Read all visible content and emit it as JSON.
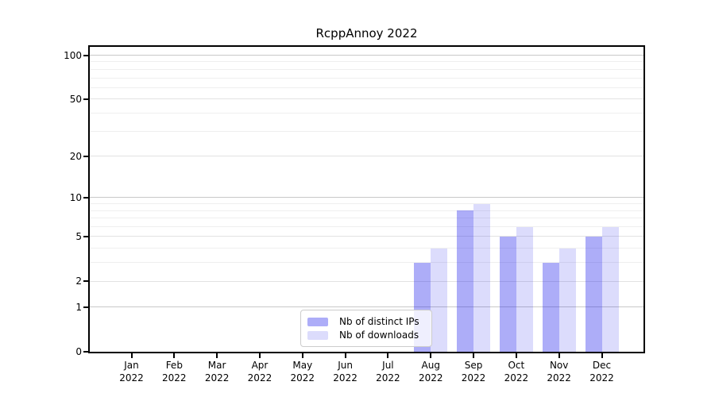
{
  "chart_data": {
    "type": "bar",
    "title": "RcppAnnoy 2022",
    "x_categories": [
      "Jan",
      "Feb",
      "Mar",
      "Apr",
      "May",
      "Jun",
      "Jul",
      "Aug",
      "Sep",
      "Oct",
      "Nov",
      "Dec"
    ],
    "x_year": "2022",
    "series": [
      {
        "name": "Nb of distinct IPs",
        "color": "rgba(20,20,235,0.35)",
        "values": [
          0,
          0,
          0,
          0,
          0,
          0,
          0,
          3,
          8,
          5,
          3,
          5
        ]
      },
      {
        "name": "Nb of downloads",
        "color": "rgba(20,20,235,0.15)",
        "values": [
          0,
          0,
          0,
          0,
          0,
          0,
          0,
          4,
          9,
          6,
          4,
          6
        ]
      }
    ],
    "yscale": "log1p",
    "ylim": [
      0,
      114
    ],
    "y_ticks": [
      0,
      1,
      2,
      5,
      10,
      20,
      50,
      100
    ],
    "y_decade_gridlines": [
      1,
      10,
      100
    ],
    "y_major_gridlines": [
      2,
      5,
      20,
      50
    ],
    "y_minor_gridlines": [
      3,
      4,
      6,
      7,
      8,
      9,
      30,
      40,
      60,
      70,
      80,
      90
    ],
    "grid": "horizontal",
    "legend_position": "inside lower center-left"
  },
  "colors": {
    "background": "#ffffff",
    "spine": "#000000",
    "text": "#000000",
    "grid_decade": "#c8c8c8",
    "grid_major": "#e2e2e2",
    "grid_minor": "#efefef",
    "legend_border": "#cccccc",
    "legend_bg": "rgba(255,255,255,0.8)",
    "bar_dark": "rgba(20,20,235,0.35)",
    "bar_light": "rgba(20,20,235,0.15)"
  }
}
